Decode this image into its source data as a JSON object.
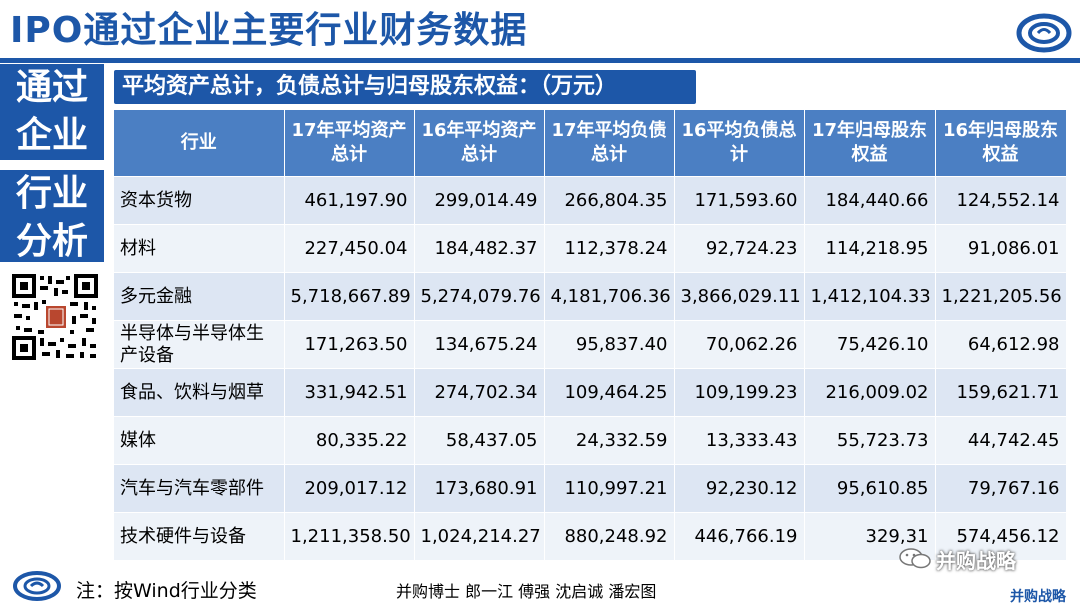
{
  "title": "IPO通过企业主要行业财务数据",
  "sidebar": {
    "box1": [
      "通过",
      "企业"
    ],
    "box2": [
      "行业",
      "分析"
    ]
  },
  "subtitle": "平均资产总计，负债总计与归母股东权益：（万元）",
  "table": {
    "headers": [
      [
        "行业"
      ],
      [
        "17年平均资产",
        "总计"
      ],
      [
        "16年平均资产",
        "总计"
      ],
      [
        "17年平均负债",
        "总计"
      ],
      [
        "16平均负债总",
        "计"
      ],
      [
        "17年归母股东",
        "权益"
      ],
      [
        "16年归母股东",
        "权益"
      ]
    ],
    "rows": [
      {
        "industry": [
          "资本货物"
        ],
        "values": [
          "461,197.90",
          "299,014.49",
          "266,804.35",
          "171,593.60",
          "184,440.66",
          "124,552.14"
        ]
      },
      {
        "industry": [
          "材料"
        ],
        "values": [
          "227,450.04",
          "184,482.37",
          "112,378.24",
          "92,724.23",
          "114,218.95",
          "91,086.01"
        ]
      },
      {
        "industry": [
          "多元金融"
        ],
        "values": [
          "5,718,667.89",
          "5,274,079.76",
          "4,181,706.36",
          "3,866,029.11",
          "1,412,104.33",
          "1,221,205.56"
        ]
      },
      {
        "industry": [
          "半导体与半导体生",
          "产设备"
        ],
        "values": [
          "171,263.50",
          "134,675.24",
          "95,837.40",
          "70,062.26",
          "75,426.10",
          "64,612.98"
        ]
      },
      {
        "industry": [
          "食品、饮料与烟草"
        ],
        "values": [
          "331,942.51",
          "274,702.34",
          "109,464.25",
          "109,199.23",
          "216,009.02",
          "159,621.71"
        ]
      },
      {
        "industry": [
          "媒体"
        ],
        "values": [
          "80,335.22",
          "58,437.05",
          "24,332.59",
          "13,333.43",
          "55,723.73",
          "44,742.45"
        ]
      },
      {
        "industry": [
          "汽车与汽车零部件"
        ],
        "values": [
          "209,017.12",
          "173,680.91",
          "110,997.21",
          "92,230.12",
          "95,610.85",
          "79,767.16"
        ]
      },
      {
        "industry": [
          "技术硬件与设备"
        ],
        "values": [
          "1,211,358.50",
          "1,024,214.27",
          "880,248.92",
          "446,766.19",
          "329,31",
          "574,456.12"
        ]
      }
    ]
  },
  "footer": {
    "note": "注：按Wind行业分类",
    "authors": "并购博士 郎一江 傅强 沈启诚 潘宏图",
    "watermark": "并购战略",
    "brand": "并购战略"
  },
  "colors": {
    "primary": "#1d57a8",
    "header_cell": "#4b7fc3",
    "row_odd": "#dde6f3",
    "row_even": "#eef3f9"
  },
  "icons": [
    "logo-swirl-icon",
    "qr-code-icon",
    "wechat-icon"
  ]
}
